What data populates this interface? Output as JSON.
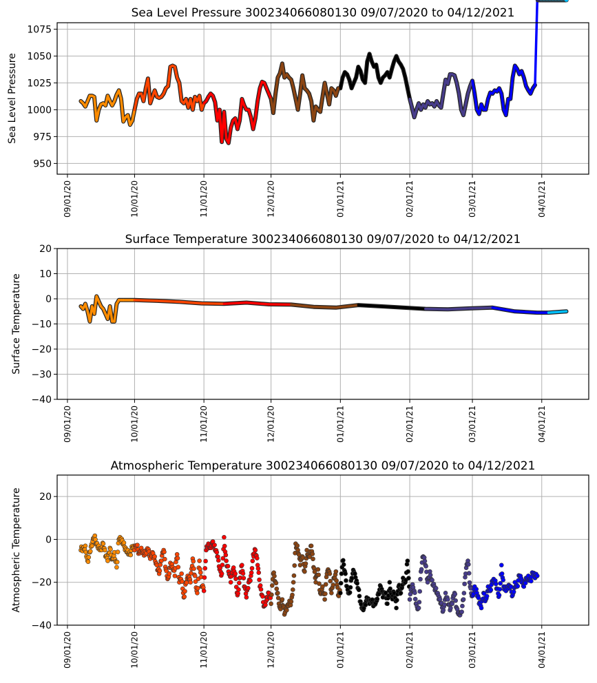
{
  "figure": {
    "buoy_id": "300234066080130",
    "date_range": "09/07/2020 to 04/12/2021"
  },
  "month_colors": [
    {
      "month": "2020-09",
      "color": "#ff8c00"
    },
    {
      "month": "2020-10",
      "color": "#ff4500"
    },
    {
      "month": "2020-11",
      "color": "#ff0000"
    },
    {
      "month": "2020-12",
      "color": "#8b4513"
    },
    {
      "month": "2021-01",
      "color": "#000000"
    },
    {
      "month": "2021-02",
      "color": "#483d8b"
    },
    {
      "month": "2021-03",
      "color": "#0000ff"
    },
    {
      "month": "2021-04",
      "color": "#00bfff"
    }
  ],
  "chart_data": [
    {
      "type": "line",
      "title": "Sea Level Pressure 300234066080130  09/07/2020 to 04/12/2021",
      "xlabel": "",
      "ylabel": "Sea Level Pressure",
      "xlim": [
        "2020-08-27",
        "2021-04-22"
      ],
      "ylim": [
        940,
        1081
      ],
      "grid": true,
      "legend": "none",
      "x_ticks": [
        "09/01/20",
        "10/01/20",
        "11/01/20",
        "12/01/20",
        "01/01/21",
        "02/01/21",
        "03/01/21",
        "04/01/21"
      ],
      "y_ticks": [
        "950",
        "975",
        "1000",
        "1025",
        "1050",
        "1075"
      ],
      "y_tick_values": [
        950,
        975,
        1000,
        1025,
        1050,
        1075
      ],
      "x_day": [
        6,
        7,
        8,
        9,
        10,
        11,
        12,
        13,
        14,
        15,
        16,
        17,
        18,
        19,
        20,
        21,
        22,
        23,
        24,
        25,
        26,
        27,
        28,
        29,
        30,
        31,
        32,
        33,
        34,
        35,
        36,
        37,
        38,
        39,
        40,
        41,
        42,
        43,
        44,
        45,
        46,
        47,
        48,
        49,
        50,
        51,
        52,
        53,
        54,
        55,
        56,
        57,
        58,
        59,
        60,
        61,
        62,
        63,
        64,
        65,
        66,
        67,
        68,
        69,
        70,
        71,
        72,
        73,
        74,
        75,
        76,
        77,
        78,
        79,
        80,
        81,
        82,
        83,
        84,
        85,
        86,
        87,
        88,
        89,
        90,
        91,
        92,
        93,
        94,
        95,
        96,
        97,
        98,
        99,
        100,
        101,
        102,
        103,
        104,
        105,
        106,
        107,
        108,
        109,
        110,
        111,
        112,
        113,
        114,
        115,
        116,
        117,
        118,
        119,
        120,
        121,
        122,
        123,
        124,
        125,
        126,
        127,
        128,
        129,
        130,
        131,
        132,
        133,
        134,
        135,
        136,
        137,
        138,
        139,
        140,
        141,
        142,
        143,
        144,
        145,
        146,
        147,
        148,
        149,
        150,
        151,
        152,
        153,
        154,
        155,
        156,
        157,
        158,
        159,
        160,
        161,
        162,
        163,
        164,
        165,
        166,
        167,
        168,
        169,
        170,
        171,
        172,
        173,
        174,
        175,
        176,
        177,
        178,
        179,
        180,
        181,
        182,
        183,
        184,
        185,
        186,
        187,
        188,
        189,
        190,
        191,
        192,
        193,
        194,
        195,
        196,
        197,
        198,
        199,
        200,
        201,
        202,
        203,
        204,
        205,
        206,
        207,
        208,
        209,
        210,
        211,
        212,
        213,
        214,
        215,
        216,
        217,
        218,
        219,
        220,
        221,
        222,
        223
      ],
      "values": [
        1008,
        1006,
        1003,
        1008,
        1013,
        1013,
        1012,
        990,
        1000,
        1005,
        1006,
        1004,
        1013,
        1008,
        1004,
        1008,
        1014,
        1018,
        1010,
        989,
        993,
        995,
        986,
        990,
        1000,
        1010,
        1015,
        1015,
        1008,
        1020,
        1029,
        1006,
        1012,
        1018,
        1012,
        1011,
        1012,
        1015,
        1020,
        1022,
        1040,
        1041,
        1040,
        1030,
        1025,
        1008,
        1006,
        1010,
        1002,
        1010,
        1000,
        1012,
        1008,
        1013,
        1000,
        1006,
        1008,
        1012,
        1015,
        1013,
        1007,
        990,
        1000,
        970,
        998,
        973,
        969,
        983,
        990,
        992,
        982,
        990,
        1010,
        1004,
        1000,
        1000,
        993,
        982,
        992,
        1008,
        1020,
        1026,
        1025,
        1020,
        1015,
        1010,
        997,
        1015,
        1030,
        1034,
        1043,
        1030,
        1033,
        1030,
        1028,
        1020,
        1010,
        1000,
        1015,
        1032,
        1020,
        1018,
        1015,
        1008,
        990,
        1003,
        1000,
        998,
        1012,
        1025,
        1015,
        1005,
        1020,
        1018,
        1013,
        1020,
        1020,
        1030,
        1035,
        1033,
        1028,
        1020,
        1025,
        1030,
        1040,
        1036,
        1028,
        1025,
        1045,
        1052,
        1045,
        1040,
        1042,
        1030,
        1025,
        1030,
        1032,
        1035,
        1030,
        1038,
        1045,
        1050,
        1045,
        1042,
        1038,
        1030,
        1020,
        1010,
        1002,
        993,
        1000,
        1006,
        1000,
        1005,
        1002,
        1008,
        1005,
        1006,
        1003,
        1008,
        1004,
        1002,
        1015,
        1028,
        1024,
        1033,
        1033,
        1032,
        1025,
        1015,
        1000,
        995,
        1005,
        1015,
        1022,
        1027,
        1015,
        1000,
        996,
        1005,
        1000,
        1000,
        1010,
        1016,
        1015,
        1018,
        1017,
        1020,
        1015,
        1000,
        995,
        1010,
        1010,
        1030,
        1041,
        1038,
        1033,
        1036,
        1030,
        1022,
        1018,
        1015,
        1020,
        1023
      ]
    },
    {
      "type": "line",
      "title": "Surface Temperature 300234066080130  09/07/2020 to 04/12/2021",
      "xlabel": "",
      "ylabel": "Surface Temperature",
      "xlim": [
        "2020-08-27",
        "2021-04-22"
      ],
      "ylim": [
        -40,
        20
      ],
      "grid": true,
      "legend": "none",
      "x_ticks": [
        "09/01/20",
        "10/01/20",
        "11/01/20",
        "12/01/20",
        "01/01/21",
        "02/01/21",
        "03/01/21",
        "04/01/21"
      ],
      "y_ticks": [
        "−40",
        "−30",
        "−20",
        "−10",
        "0",
        "10",
        "20"
      ],
      "y_tick_values": [
        -40,
        -30,
        -20,
        -10,
        0,
        10,
        20
      ],
      "x_day": [
        6,
        7,
        8,
        9,
        10,
        11,
        12,
        13,
        14,
        15,
        16,
        17,
        18,
        19,
        20,
        21,
        22,
        23,
        24,
        25,
        30,
        40,
        50,
        60,
        70,
        80,
        90,
        100,
        110,
        120,
        130,
        140,
        150,
        160,
        170,
        180,
        190,
        200,
        210,
        215,
        223
      ],
      "values": [
        -3,
        -4,
        -2,
        -5,
        -9,
        -3,
        -6,
        1,
        -1,
        -3,
        -4,
        -6,
        -8,
        -3,
        -9,
        -9,
        -2,
        -0.5,
        -0.5,
        -0.5,
        -0.5,
        -0.8,
        -1.2,
        -1.8,
        -2,
        -1.5,
        -2.2,
        -2.3,
        -3.2,
        -3.5,
        -2.5,
        -3,
        -3.5,
        -4,
        -4.2,
        -3.8,
        -3.5,
        -5,
        -5.5,
        -5.5,
        -5
      ]
    },
    {
      "type": "scatter",
      "title": "Atmospheric Temperature 300234066080130  09/07/2020 to 04/12/2021",
      "xlabel": "",
      "ylabel": "Atmospheric Temperature",
      "xlim": [
        "2020-08-27",
        "2021-04-22"
      ],
      "ylim": [
        -40,
        30
      ],
      "grid": true,
      "legend": "none",
      "x_ticks": [
        "09/01/20",
        "10/01/20",
        "11/01/20",
        "12/01/20",
        "01/01/21",
        "02/01/21",
        "03/01/21",
        "04/01/21"
      ],
      "y_ticks": [
        "−40",
        "−20",
        "0",
        "20"
      ],
      "y_tick_values": [
        -40,
        -20,
        0,
        20
      ],
      "x_day": [
        6,
        7,
        8,
        9,
        10,
        11,
        12,
        13,
        14,
        15,
        16,
        17,
        18,
        19,
        20,
        21,
        22,
        23,
        24,
        25,
        26,
        27,
        28,
        29,
        30,
        31,
        32,
        33,
        34,
        35,
        36,
        37,
        38,
        39,
        40,
        41,
        42,
        43,
        44,
        45,
        46,
        47,
        48,
        49,
        50,
        51,
        52,
        53,
        54,
        55,
        56,
        57,
        58,
        59,
        60,
        61,
        62,
        63,
        64,
        65,
        66,
        67,
        68,
        69,
        70,
        71,
        72,
        73,
        74,
        75,
        76,
        77,
        78,
        79,
        80,
        81,
        82,
        83,
        84,
        85,
        86,
        87,
        88,
        89,
        90,
        91,
        92,
        93,
        94,
        95,
        96,
        97,
        98,
        99,
        100,
        101,
        102,
        103,
        104,
        105,
        106,
        107,
        108,
        109,
        110,
        111,
        112,
        113,
        114,
        115,
        116,
        117,
        118,
        119,
        120,
        121,
        122,
        123,
        124,
        125,
        126,
        127,
        128,
        129,
        130,
        131,
        132,
        133,
        134,
        135,
        136,
        137,
        138,
        139,
        140,
        141,
        142,
        143,
        144,
        145,
        146,
        147,
        148,
        149,
        150,
        151,
        152,
        153,
        154,
        155,
        156,
        157,
        158,
        159,
        160,
        161,
        162,
        163,
        164,
        165,
        166,
        167,
        168,
        169,
        170,
        171,
        172,
        173,
        174,
        175,
        176,
        177,
        178,
        179,
        180,
        181,
        182,
        183,
        184,
        185,
        186,
        187,
        188,
        189,
        190,
        191,
        192,
        193,
        194,
        195,
        196,
        197,
        198,
        199,
        200,
        201,
        202,
        203,
        204,
        205,
        206,
        207,
        208,
        209,
        210,
        211,
        212,
        213,
        214,
        215,
        216,
        217,
        218,
        219,
        220,
        221,
        222,
        223
      ],
      "values": [
        -5,
        -4,
        -3,
        -10,
        -6,
        -3,
        1,
        -2,
        -3,
        -4,
        -2,
        -8,
        -10,
        -4,
        -9,
        -6,
        -13,
        0,
        -1,
        -2,
        -4,
        -5,
        -7,
        -4,
        -5,
        -3,
        -6,
        -4,
        -6,
        -7,
        -5,
        -9,
        -6,
        -8,
        -12,
        -16,
        -10,
        -5,
        -14,
        -18,
        -11,
        -13,
        -17,
        -7,
        -20,
        -16,
        -27,
        -20,
        -18,
        -20,
        -9,
        -17,
        -25,
        -10,
        -22,
        -24,
        -5,
        -2,
        -3,
        -1,
        -5,
        -8,
        -14,
        -16,
        1,
        -10,
        -15,
        -20,
        -14,
        -16,
        -26,
        -18,
        -12,
        -22,
        -27,
        -20,
        -17,
        -7,
        -5,
        -12,
        -22,
        -26,
        -31,
        -27,
        -25,
        -30,
        -16,
        -20,
        -25,
        -32,
        -28,
        -35,
        -33,
        -30,
        -29,
        -20,
        -2,
        -5,
        -12,
        -8,
        -15,
        -5,
        -8,
        -3,
        -13,
        -20,
        -14,
        -25,
        -22,
        -28,
        -16,
        -15,
        -25,
        -18,
        -15,
        -26,
        -25,
        -10,
        -15,
        -22,
        -25,
        -18,
        -15,
        -20,
        -23,
        -29,
        -32,
        -30,
        -28,
        -30,
        -29,
        -30,
        -28,
        -25,
        -22,
        -27,
        -25,
        -30,
        -20,
        -27,
        -25,
        -32,
        -22,
        -25,
        -18,
        -20,
        -10,
        -28,
        -22,
        -24,
        -30,
        -32,
        -15,
        -8,
        -12,
        -20,
        -15,
        -19,
        -22,
        -25,
        -28,
        -30,
        -33,
        -25,
        -28,
        -33,
        -30,
        -25,
        -32,
        -34,
        -34,
        -28,
        -16,
        -10,
        -22,
        -26,
        -22,
        -25,
        -30,
        -32,
        -25,
        -28,
        -22,
        -24,
        -20,
        -20,
        -23,
        -26,
        -12,
        -22,
        -24,
        -23,
        -22,
        -26,
        -20,
        -22,
        -17,
        -20,
        -22,
        -18,
        -17,
        -19,
        -16,
        -18,
        -17
      ]
    }
  ]
}
